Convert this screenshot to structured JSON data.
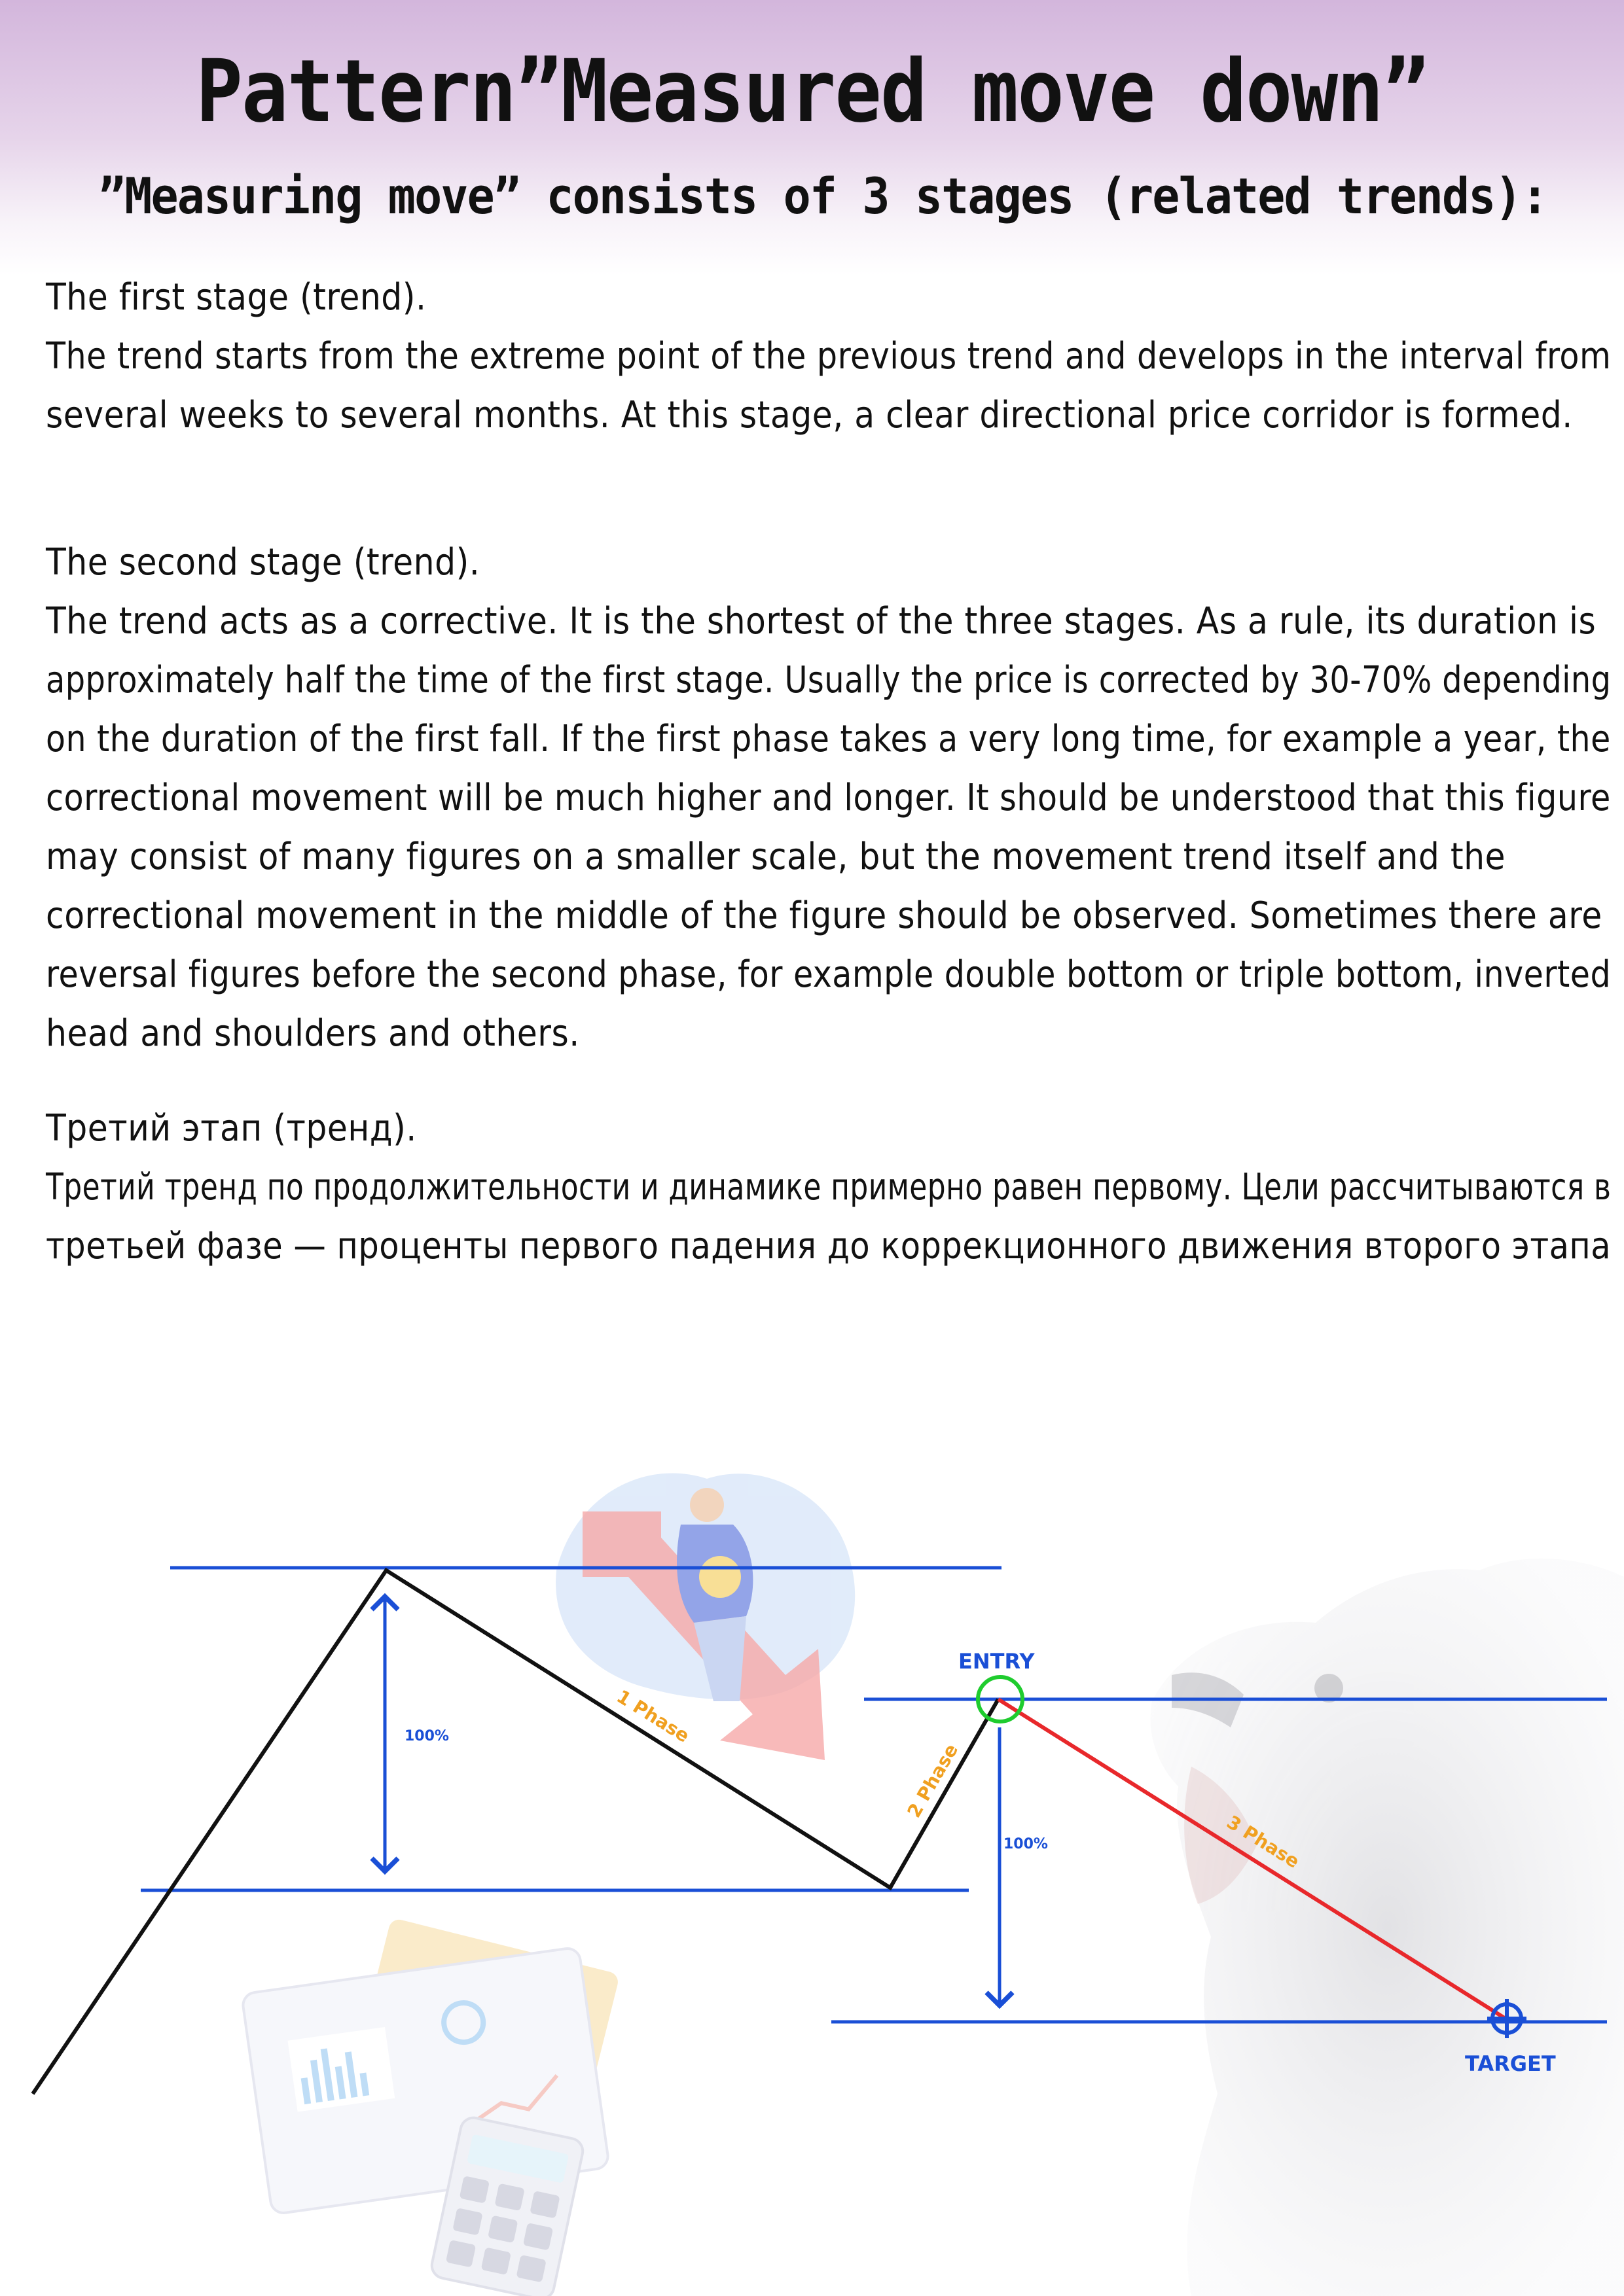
{
  "title": "Pattern”Measured move down”",
  "subtitle": "”Measuring move” consists of 3 stages (related trends):",
  "sections": [
    {
      "heading": "The first stage (trend).",
      "lines": [
        "The trend starts from the extreme point of the previous trend and develops in the interval from",
        "several weeks to several months. At this stage, a clear directional price corridor is formed."
      ]
    },
    {
      "heading": "The second stage (trend).",
      "lines": [
        " The trend acts as a corrective. It is the shortest of the three stages. As a rule, its duration is",
        "approximately half the time of the first stage. Usually the price is corrected by 30-70% depending",
        "on the duration of the first fall. If the first phase takes a very long time, for example a year, the",
        "correctional movement will be much higher and longer. It should be understood that this figure",
        "may consist of many figures on a smaller scale, but the movement trend itself and the",
        "correctional movement in the middle of the figure should be observed. Sometimes there are",
        " reversal figures before the second phase, for example double bottom or triple bottom, inverted",
        "head and shoulders and others."
      ]
    },
    {
      "heading": "Третий этап (тренд).",
      "lines": [
        "Третий тренд по продолжительности и динамике примерно равен первому. Цели рассчитываются в",
        "третьей фазе — проценты первого падения до коррекционного движения второго этапа"
      ]
    }
  ],
  "diagram": {
    "labels": {
      "phase1": "1 Phase",
      "phase2": "2 Phase",
      "phase3": "3 Phase",
      "entry": "ENTRY",
      "target": "TARGET",
      "measure_first": "100%",
      "measure_third": "100%"
    },
    "colors": {
      "level_line": "#1a4fd6",
      "price_line": "#111111",
      "phase_label": "#f0a020",
      "third_phase": "#e8282b",
      "entry_circle": "#1fcc2e",
      "text_blue": "#1a4fd6"
    },
    "icons": {
      "entry": "entry-circle-icon",
      "target": "target-crosshair-icon",
      "illustration_person": "person-with-coin-illustration",
      "illustration_down_arrow": "down-arrow-illustration",
      "illustration_notebook": "notebook-calculator-illustration",
      "illustration_bear": "bear-illustration"
    }
  }
}
